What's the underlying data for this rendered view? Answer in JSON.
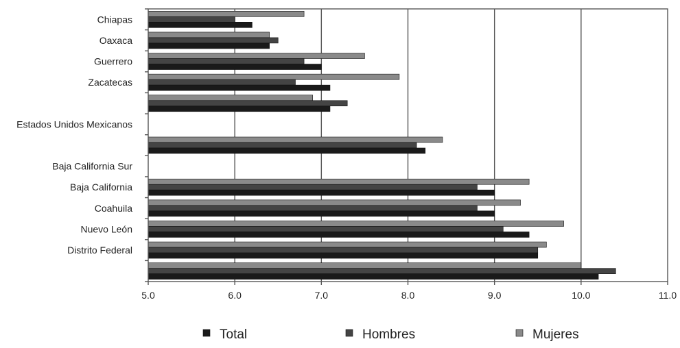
{
  "chart_data": {
    "type": "bar",
    "orientation": "horizontal",
    "title": "",
    "xlabel": "",
    "ylabel": "",
    "xlim": [
      5.0,
      11.0
    ],
    "x_ticks": [
      "5.0",
      "6.0",
      "7.0",
      "8.0",
      "9.0",
      "10.0",
      "11.0"
    ],
    "grid": true,
    "legend_position": "bottom",
    "categories": [
      "Chiapas",
      "Oaxaca",
      "Guerrero",
      "Zacatecas",
      "",
      "Estados Unidos Mexicanos",
      "",
      "Baja California Sur",
      "Baja California",
      "Coahuila",
      "Nuevo León",
      "Distrito Federal",
      ""
    ],
    "series": [
      {
        "name": "Total",
        "color": "#1a1a1a",
        "values": [
          6.2,
          6.4,
          7.0,
          7.1,
          7.1,
          null,
          8.2,
          null,
          9.0,
          9.0,
          9.4,
          9.5,
          10.2
        ]
      },
      {
        "name": "Hombres",
        "color": "#444444",
        "values": [
          6.0,
          6.5,
          6.8,
          6.7,
          7.3,
          null,
          8.1,
          null,
          8.8,
          8.8,
          9.1,
          9.5,
          10.4
        ]
      },
      {
        "name": "Mujeres",
        "color": "#8a8a8a",
        "values": [
          6.8,
          6.4,
          7.5,
          7.9,
          6.9,
          null,
          8.4,
          null,
          9.4,
          9.3,
          9.8,
          9.6,
          10.0
        ]
      }
    ]
  }
}
